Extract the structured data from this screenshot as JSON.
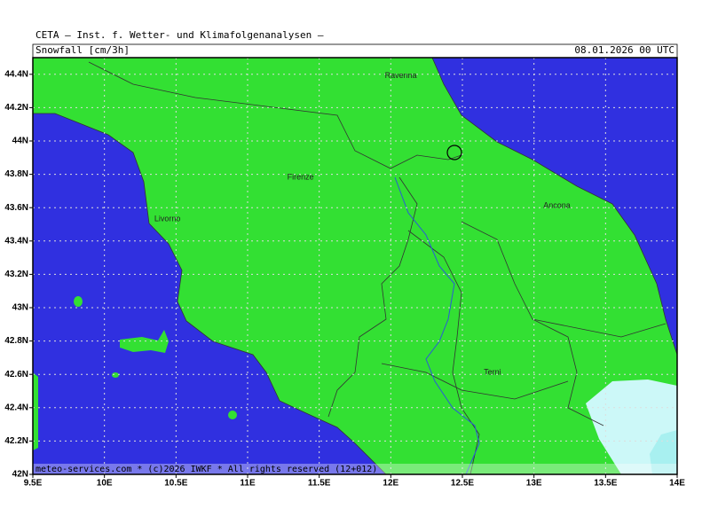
{
  "header": {
    "institute": "CETA — Inst. f. Wetter- und Klimafolgenanalysen —",
    "parameter": "Snowfall [cm/3h]",
    "valid_time": "08.01.2026 00 UTC"
  },
  "map": {
    "lon_range": [
      9.5,
      14
    ],
    "lat_range": [
      42,
      44.5
    ],
    "lon_ticks": [
      {
        "value": 9.5,
        "label": "9.5E"
      },
      {
        "value": 10,
        "label": "10E"
      },
      {
        "value": 10.5,
        "label": "10.5E"
      },
      {
        "value": 11,
        "label": "11E"
      },
      {
        "value": 11.5,
        "label": "11.5E"
      },
      {
        "value": 12,
        "label": "12E"
      },
      {
        "value": 12.5,
        "label": "12.5E"
      },
      {
        "value": 13,
        "label": "13E"
      },
      {
        "value": 13.5,
        "label": "13.5E"
      },
      {
        "value": 14,
        "label": "14E"
      }
    ],
    "lat_ticks": [
      {
        "value": 42,
        "label": "42N"
      },
      {
        "value": 42.2,
        "label": "42.2N"
      },
      {
        "value": 42.4,
        "label": "42.4N"
      },
      {
        "value": 42.6,
        "label": "42.6N"
      },
      {
        "value": 42.8,
        "label": "42.8N"
      },
      {
        "value": 43,
        "label": "43N"
      },
      {
        "value": 43.2,
        "label": "43.2N"
      },
      {
        "value": 43.4,
        "label": "43.4N"
      },
      {
        "value": 43.6,
        "label": "43.6N"
      },
      {
        "value": 43.8,
        "label": "43.8N"
      },
      {
        "value": 44,
        "label": "44N"
      },
      {
        "value": 44.2,
        "label": "44.2N"
      },
      {
        "value": 44.4,
        "label": "44.4N"
      }
    ],
    "cities": [
      {
        "name": "Ravenna",
        "lon": 12.07,
        "lat": 44.39
      },
      {
        "name": "Firenze",
        "lon": 11.37,
        "lat": 43.78
      },
      {
        "name": "Livorno",
        "lon": 10.44,
        "lat": 43.53
      },
      {
        "name": "Ancona",
        "lon": 13.16,
        "lat": 43.61
      },
      {
        "name": "Terni",
        "lon": 12.71,
        "lat": 42.61
      }
    ]
  },
  "footer": "meteo-services.com * (c)2026 IWKF * All rights reserved (12+012)"
}
